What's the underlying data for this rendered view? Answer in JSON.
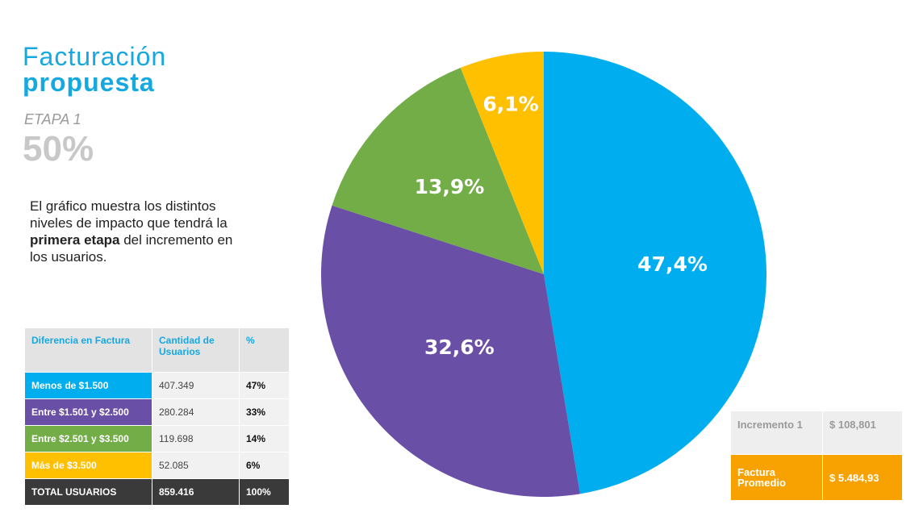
{
  "title_line1": "Facturación",
  "title_line2": "propuesta",
  "stage_label": "ETAPA 1",
  "stage_percent": "50%",
  "description": {
    "part1": "El gráfico muestra los distintos niveles de impacto que tendrá la ",
    "bold1": "primera etapa",
    "part2": " del incremento  en los usuarios."
  },
  "table": {
    "headers": [
      "Diferencia en Factura",
      "Cantidad de Usuarios",
      "%"
    ],
    "rows": [
      {
        "label": "Menos de $1.500",
        "users": "407.349",
        "pct": "47%",
        "color": "#00aeef"
      },
      {
        "label": "Entre $1.501 y $2.500",
        "users": "280.284",
        "pct": "33%",
        "color": "#6a4fa6"
      },
      {
        "label": "Entre $2.501 y $3.500",
        "users": "119.698",
        "pct": "14%",
        "color": "#72ad48"
      },
      {
        "label": "Más de $3.500",
        "users": "52.085",
        "pct": "6%",
        "color": "#ffc000"
      }
    ],
    "total": {
      "label": "TOTAL USUARIOS",
      "users": "859.416",
      "pct": "100%"
    }
  },
  "increment": {
    "label1": "Incremento 1",
    "value1": "$ 108,801",
    "label2": "Factura Promedio",
    "value2": "$ 5.484,93"
  },
  "chart_data": {
    "type": "pie",
    "categories": [
      "Menos de $1.500",
      "Entre $1.501 y $2.500",
      "Entre $2.501 y $3.500",
      "Más de $3.500"
    ],
    "values": [
      47.4,
      32.6,
      13.9,
      6.1
    ],
    "labels": [
      "47,4%",
      "32,6%",
      "13,9%",
      "6,1%"
    ],
    "colors": [
      "#00aeef",
      "#6a4fa6",
      "#72ad48",
      "#ffc000"
    ],
    "start": "12 o'clock",
    "direction": "clockwise",
    "legend": "none"
  }
}
